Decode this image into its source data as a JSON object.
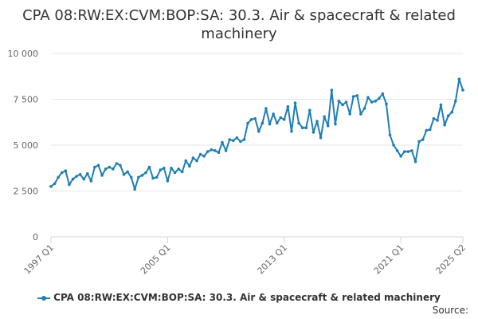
{
  "chart_data": {
    "type": "line",
    "title": "CPA 08:RW:EX:CVM:BOP:SA: 30.3. Air & spacecraft & related machinery",
    "xlabel": "",
    "ylabel": "",
    "ylim": [
      0,
      10000
    ],
    "y_ticks": [
      {
        "value": 0,
        "label": "0"
      },
      {
        "value": 2500,
        "label": "2 500"
      },
      {
        "value": 5000,
        "label": "5 000"
      },
      {
        "value": 7500,
        "label": "7 500"
      },
      {
        "value": 10000,
        "label": "10 000"
      }
    ],
    "x_ticks": [
      {
        "value": "1997 Q1",
        "label": "1997 Q1"
      },
      {
        "value": "2005 Q1",
        "label": "2005 Q1"
      },
      {
        "value": "2013 Q1",
        "label": "2013 Q1"
      },
      {
        "value": "2021 Q1",
        "label": "2021 Q1"
      },
      {
        "value": "2025 Q2",
        "label": "2025 Q2"
      }
    ],
    "grid": true,
    "legend_position": "bottom",
    "color": "#1f7fb4",
    "x": [
      "1997 Q1",
      "1997 Q2",
      "1997 Q3",
      "1997 Q4",
      "1998 Q1",
      "1998 Q2",
      "1998 Q3",
      "1998 Q4",
      "1999 Q1",
      "1999 Q2",
      "1999 Q3",
      "1999 Q4",
      "2000 Q1",
      "2000 Q2",
      "2000 Q3",
      "2000 Q4",
      "2001 Q1",
      "2001 Q2",
      "2001 Q3",
      "2001 Q4",
      "2002 Q1",
      "2002 Q2",
      "2002 Q3",
      "2002 Q4",
      "2003 Q1",
      "2003 Q2",
      "2003 Q3",
      "2003 Q4",
      "2004 Q1",
      "2004 Q2",
      "2004 Q3",
      "2004 Q4",
      "2005 Q1",
      "2005 Q2",
      "2005 Q3",
      "2005 Q4",
      "2006 Q1",
      "2006 Q2",
      "2006 Q3",
      "2006 Q4",
      "2007 Q1",
      "2007 Q2",
      "2007 Q3",
      "2007 Q4",
      "2008 Q1",
      "2008 Q2",
      "2008 Q3",
      "2008 Q4",
      "2009 Q1",
      "2009 Q2",
      "2009 Q3",
      "2009 Q4",
      "2010 Q1",
      "2010 Q2",
      "2010 Q3",
      "2010 Q4",
      "2011 Q1",
      "2011 Q2",
      "2011 Q3",
      "2011 Q4",
      "2012 Q1",
      "2012 Q2",
      "2012 Q3",
      "2012 Q4",
      "2013 Q1",
      "2013 Q2",
      "2013 Q3",
      "2013 Q4",
      "2014 Q1",
      "2014 Q2",
      "2014 Q3",
      "2014 Q4",
      "2015 Q1",
      "2015 Q2",
      "2015 Q3",
      "2015 Q4",
      "2016 Q1",
      "2016 Q2",
      "2016 Q3",
      "2016 Q4",
      "2017 Q1",
      "2017 Q2",
      "2017 Q3",
      "2017 Q4",
      "2018 Q1",
      "2018 Q2",
      "2018 Q3",
      "2018 Q4",
      "2019 Q1",
      "2019 Q2",
      "2019 Q3",
      "2019 Q4",
      "2020 Q1",
      "2020 Q2",
      "2020 Q3",
      "2020 Q4",
      "2021 Q1",
      "2021 Q2",
      "2021 Q3",
      "2021 Q4",
      "2022 Q1",
      "2022 Q2",
      "2022 Q3",
      "2022 Q4",
      "2023 Q1",
      "2023 Q2",
      "2023 Q3",
      "2023 Q4",
      "2024 Q1",
      "2024 Q2",
      "2024 Q3",
      "2024 Q4",
      "2025 Q1",
      "2025 Q2"
    ],
    "series": [
      {
        "name": "CPA 08:RW:EX:CVM:BOP:SA: 30.3. Air & spacecraft & related machinery",
        "values": [
          2750,
          2900,
          3250,
          3500,
          3600,
          2850,
          3150,
          3300,
          3400,
          3150,
          3450,
          3050,
          3800,
          3900,
          3350,
          3700,
          3800,
          3700,
          4000,
          3900,
          3400,
          3550,
          3250,
          2600,
          3250,
          3350,
          3500,
          3800,
          3200,
          3250,
          3650,
          3750,
          3050,
          3750,
          3500,
          3700,
          3550,
          4150,
          3850,
          4300,
          4150,
          4500,
          4400,
          4650,
          4750,
          4700,
          4600,
          5150,
          4700,
          5300,
          5250,
          5400,
          5200,
          5300,
          6200,
          6400,
          6450,
          5750,
          6200,
          7000,
          6150,
          6700,
          6200,
          6500,
          6400,
          7100,
          5750,
          7300,
          6200,
          5950,
          5950,
          6900,
          5700,
          6300,
          5400,
          6550,
          6050,
          8000,
          6150,
          7400,
          7200,
          7350,
          6700,
          7650,
          7700,
          6700,
          7000,
          7600,
          7350,
          7400,
          7550,
          7800,
          7250,
          5550,
          5000,
          4700,
          4400,
          4650,
          4650,
          4700,
          4100,
          5200,
          5300,
          5800,
          5850,
          6450,
          6350,
          7200,
          6100,
          6600,
          6800,
          7400,
          8600,
          8000
        ]
      }
    ]
  },
  "legend": {
    "label": "CPA 08:RW:EX:CVM:BOP:SA: 30.3. Air & spacecraft & related machinery"
  },
  "source_label": "Source:"
}
